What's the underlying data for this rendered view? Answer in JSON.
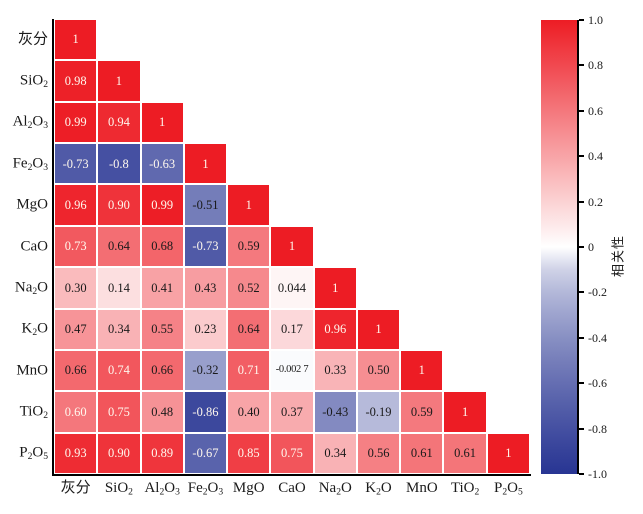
{
  "chart_data": {
    "type": "heatmap",
    "subtype": "lower-triangle-correlation-matrix",
    "categories": [
      "灰分",
      "SiO₂",
      "Al₂O₃",
      "Fe₂O₃",
      "MgO",
      "CaO",
      "Na₂O",
      "K₂O",
      "MnO",
      "TiO₂",
      "P₂O₅"
    ],
    "matrix_values": [
      [
        1
      ],
      [
        0.98,
        1
      ],
      [
        0.99,
        0.94,
        1
      ],
      [
        -0.73,
        -0.8,
        -0.63,
        1
      ],
      [
        0.96,
        0.9,
        0.99,
        -0.51,
        1
      ],
      [
        0.73,
        0.64,
        0.68,
        -0.73,
        0.59,
        1
      ],
      [
        0.3,
        0.14,
        0.41,
        0.43,
        0.52,
        0.044,
        1
      ],
      [
        0.47,
        0.34,
        0.55,
        0.23,
        0.64,
        0.17,
        0.96,
        1
      ],
      [
        0.66,
        0.74,
        0.66,
        -0.32,
        0.71,
        -0.0027,
        0.33,
        0.5,
        1
      ],
      [
        0.6,
        0.75,
        0.48,
        -0.86,
        0.4,
        0.37,
        -0.43,
        -0.19,
        0.59,
        1
      ],
      [
        0.93,
        0.9,
        0.89,
        -0.67,
        0.85,
        0.75,
        0.34,
        0.56,
        0.61,
        0.61,
        1
      ]
    ],
    "matrix_display": [
      [
        "1"
      ],
      [
        "0.98",
        "1"
      ],
      [
        "0.99",
        "0.94",
        "1"
      ],
      [
        "-0.73",
        "-0.8",
        "-0.63",
        "1"
      ],
      [
        "0.96",
        "0.90",
        "0.99",
        "-0.51",
        "1"
      ],
      [
        "0.73",
        "0.64",
        "0.68",
        "-0.73",
        "0.59",
        "1"
      ],
      [
        "0.30",
        "0.14",
        "0.41",
        "0.43",
        "0.52",
        "0.044",
        "1"
      ],
      [
        "0.47",
        "0.34",
        "0.55",
        "0.23",
        "0.64",
        "0.17",
        "0.96",
        "1"
      ],
      [
        "0.66",
        "0.74",
        "0.66",
        "-0.32",
        "0.71",
        "-0.002 7",
        "0.33",
        "0.50",
        "1"
      ],
      [
        "0.60",
        "0.75",
        "0.48",
        "-0.86",
        "0.40",
        "0.37",
        "-0.43",
        "-0.19",
        "0.59",
        "1"
      ],
      [
        "0.93",
        "0.90",
        "0.89",
        "-0.67",
        "0.85",
        "0.75",
        "0.34",
        "0.56",
        "0.61",
        "0.61",
        "1"
      ]
    ],
    "text_colors": [
      [
        "w"
      ],
      [
        "w",
        "w"
      ],
      [
        "w",
        "w",
        "w"
      ],
      [
        "w",
        "w",
        "w",
        "w"
      ],
      [
        "w",
        "w",
        "w",
        "b",
        "w"
      ],
      [
        "w",
        "b",
        "b",
        "w",
        "b",
        "w"
      ],
      [
        "b",
        "b",
        "b",
        "b",
        "b",
        "b",
        "w"
      ],
      [
        "b",
        "b",
        "b",
        "b",
        "b",
        "b",
        "w",
        "w"
      ],
      [
        "b",
        "w",
        "b",
        "b",
        "w",
        "b",
        "b",
        "b",
        "w"
      ],
      [
        "w",
        "w",
        "b",
        "w",
        "b",
        "b",
        "b",
        "b",
        "b",
        "w"
      ],
      [
        "w",
        "w",
        "w",
        "w",
        "w",
        "w",
        "b",
        "b",
        "b",
        "b",
        "w"
      ]
    ],
    "colorbar": {
      "label": "相关性",
      "min": -1,
      "max": 1,
      "ticks": [
        "1.0",
        "0.8",
        "0.6",
        "0.4",
        "0.2",
        "0",
        "-0.2",
        "-0.4",
        "-0.6",
        "-0.8",
        "-1.0"
      ],
      "color_positive_max": "#ed1c24",
      "color_zero": "#ffffff",
      "color_negative_max": "#283593"
    },
    "colors": {
      "cell_text_light": "#fff8ee",
      "cell_text_dark": "#1a1a1a",
      "axis": "#000000"
    }
  }
}
